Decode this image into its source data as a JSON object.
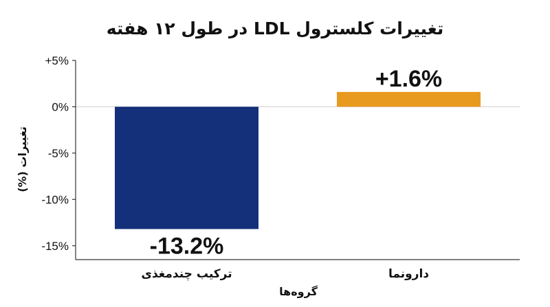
{
  "chart_data": {
    "type": "bar",
    "title": "تغییرات کلسترول LDL در طول ۱۲ هفته",
    "xlabel": "گروه‌ها",
    "ylabel": "تغییرات (%)",
    "categories": [
      "ترکیب چندمغذی",
      "دارونما"
    ],
    "values": [
      -13.2,
      1.6
    ],
    "data_labels": [
      "-13.2%",
      "+1.6%"
    ],
    "colors": [
      "#14307a",
      "#e89a1e"
    ],
    "ylim": [
      -16.5,
      5
    ],
    "yticks": [
      5,
      0,
      -5,
      -10,
      -15
    ],
    "ytick_labels": [
      "+5%",
      "0%",
      "-5%",
      "-10%",
      "-15%"
    ],
    "grid": false,
    "legend": "none"
  }
}
